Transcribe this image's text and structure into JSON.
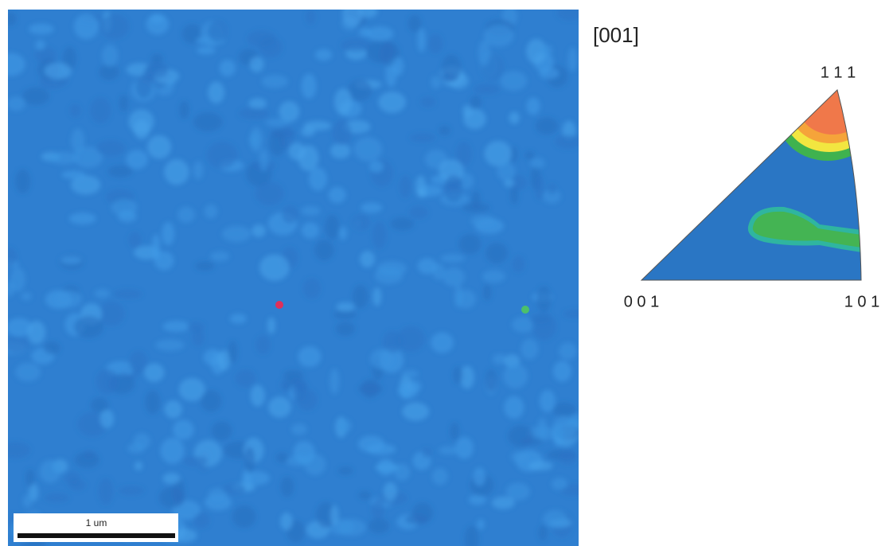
{
  "map": {
    "scale_bar": "1 um"
  },
  "pole_figure": {
    "direction": "[001]",
    "corners": {
      "top": "1 1 1",
      "left": "0 0 1",
      "right": "1 0 1"
    }
  }
}
